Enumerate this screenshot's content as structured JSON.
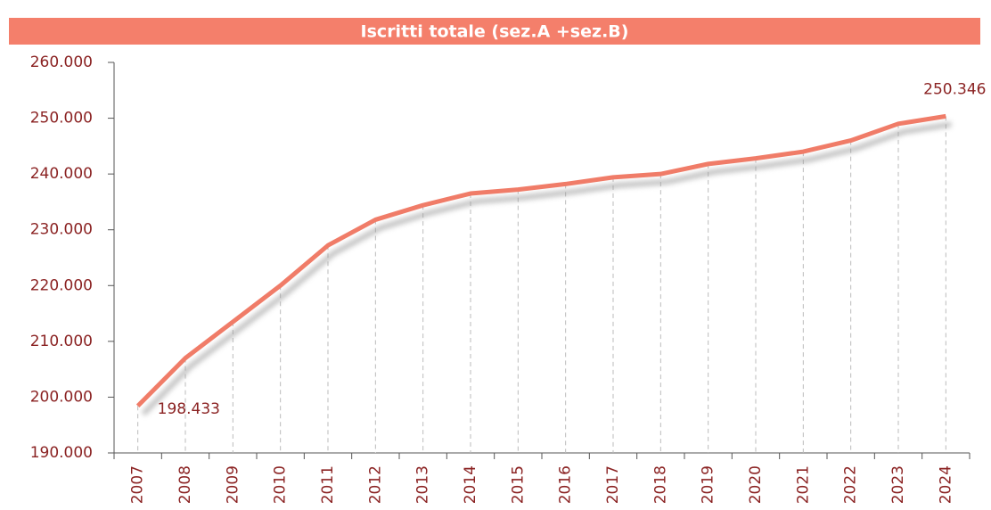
{
  "chart_data": {
    "type": "line",
    "title": "Iscritti totale (sez.A +sez.B)",
    "categories": [
      "2007",
      "2008",
      "2009",
      "2010",
      "2011",
      "2012",
      "2013",
      "2014",
      "2015",
      "2016",
      "2017",
      "2018",
      "2019",
      "2020",
      "2021",
      "2022",
      "2023",
      "2024"
    ],
    "values": [
      198433,
      207000,
      213500,
      220000,
      227200,
      231800,
      234400,
      236500,
      237200,
      238200,
      239400,
      240000,
      241800,
      242800,
      244000,
      246000,
      249000,
      250346
    ],
    "value_labels": [
      "198.433",
      null,
      null,
      null,
      null,
      null,
      null,
      null,
      null,
      null,
      null,
      null,
      null,
      null,
      null,
      null,
      null,
      "250.346"
    ],
    "color": "#f07c68",
    "ylim": [
      190000,
      260000
    ],
    "yticks": [
      {
        "value": 190000,
        "label": "190.000"
      },
      {
        "value": 200000,
        "label": "200.000"
      },
      {
        "value": 210000,
        "label": "210.000"
      },
      {
        "value": 220000,
        "label": "220.000"
      },
      {
        "value": 230000,
        "label": "230.000"
      },
      {
        "value": 240000,
        "label": "240.000"
      },
      {
        "value": 250000,
        "label": "250.000"
      },
      {
        "value": 260000,
        "label": "260.000"
      }
    ]
  }
}
